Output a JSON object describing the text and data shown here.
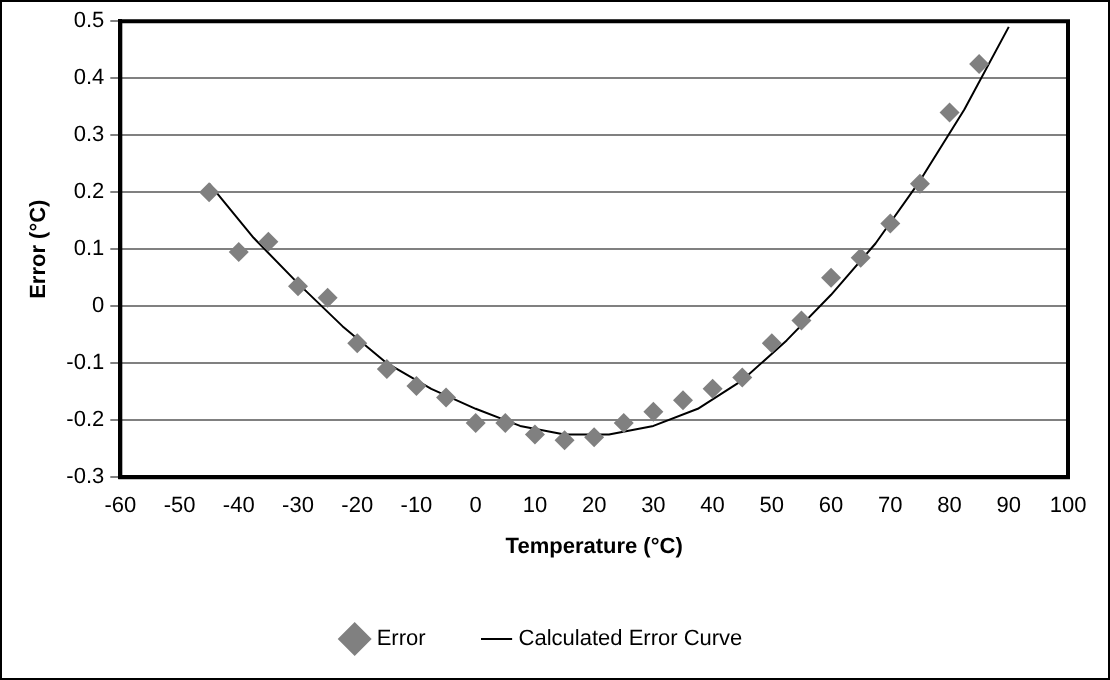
{
  "chart_data": {
    "type": "scatter",
    "xlabel": "Temperature (°C)",
    "ylabel": "Error (°C)",
    "xlim": [
      -60,
      100
    ],
    "xticks": [
      -60,
      -50,
      -40,
      -30,
      -20,
      -10,
      0,
      10,
      20,
      30,
      40,
      50,
      60,
      70,
      80,
      90,
      100
    ],
    "ylim": [
      -0.3,
      0.5
    ],
    "yticks": [
      -0.3,
      -0.2,
      -0.1,
      0,
      0.1,
      0.2,
      0.3,
      0.4,
      0.5
    ],
    "grid": "y",
    "legend": "bottom",
    "marker": "diamond",
    "series": [
      {
        "name": "Error",
        "color": "#808080",
        "x": [
          -45,
          -40,
          -35,
          -30,
          -25,
          -20,
          -15,
          -10,
          -5,
          0,
          5,
          10,
          15,
          20,
          25,
          30,
          35,
          40,
          45,
          50,
          55,
          60,
          65,
          70,
          75,
          80,
          85
        ],
        "values": [
          0.2,
          0.095,
          0.113,
          0.035,
          0.015,
          -0.065,
          -0.11,
          -0.14,
          -0.16,
          -0.205,
          -0.205,
          -0.225,
          -0.235,
          -0.23,
          -0.205,
          -0.185,
          -0.165,
          -0.145,
          -0.125,
          -0.065,
          -0.025,
          0.05,
          0.085,
          0.145,
          0.215,
          0.34,
          0.425
        ]
      },
      {
        "name": "Calculated Error Curve",
        "type": "line",
        "color": "#000000",
        "marker": "none",
        "x": [
          -45,
          -37.5,
          -30,
          -22.5,
          -15,
          -7.5,
          0,
          7.5,
          15,
          22.5,
          30,
          37.5,
          45,
          52.5,
          60,
          67.5,
          75,
          82.5,
          90
        ],
        "values": [
          0.215,
          0.12,
          0.04,
          -0.035,
          -0.1,
          -0.145,
          -0.18,
          -0.21,
          -0.225,
          -0.225,
          -0.21,
          -0.18,
          -0.13,
          -0.06,
          0.02,
          0.11,
          0.22,
          0.345,
          0.49
        ]
      }
    ]
  }
}
